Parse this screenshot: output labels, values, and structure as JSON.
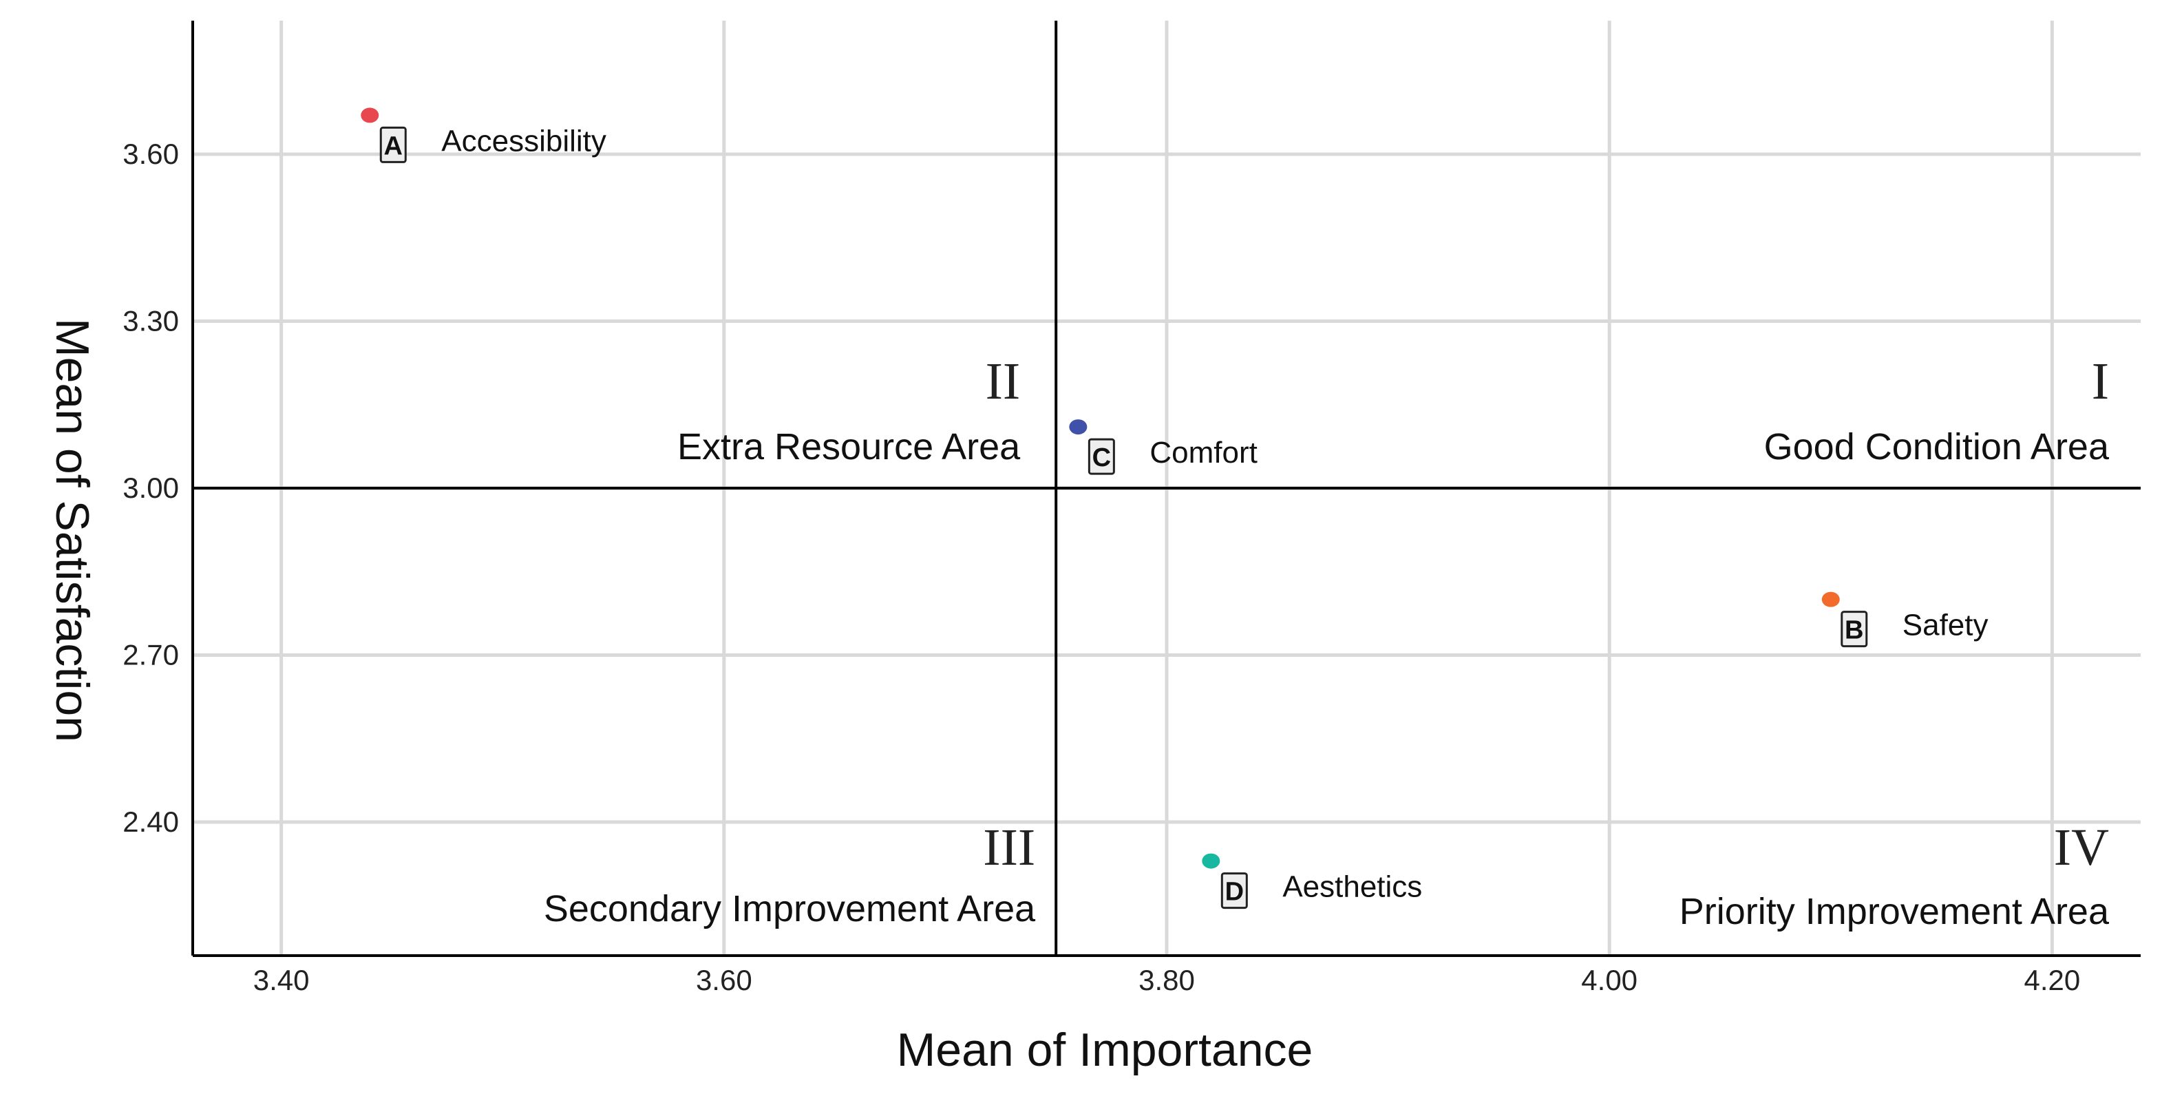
{
  "chart_data": {
    "type": "scatter",
    "title": "",
    "xlabel": "Mean of Importance",
    "ylabel": "Mean of Satisfaction",
    "xlim": [
      3.36,
      4.24
    ],
    "ylim": [
      2.16,
      3.84
    ],
    "x_ticks": [
      3.4,
      3.6,
      3.8,
      4.0,
      4.2
    ],
    "y_ticks": [
      2.4,
      2.7,
      3.0,
      3.3,
      3.6
    ],
    "x_tick_labels": [
      "3.40",
      "3.60",
      "3.80",
      "4.00",
      "4.20"
    ],
    "y_tick_labels": [
      "2.40",
      "2.70",
      "3.00",
      "3.30",
      "3.60"
    ],
    "grid": true,
    "reference_lines": {
      "x": 3.75,
      "y": 3.0
    },
    "points": [
      {
        "letter": "A",
        "name": "Accessibility",
        "x": 3.44,
        "y": 3.67,
        "color": "#e8474f"
      },
      {
        "letter": "B",
        "name": "Safety",
        "x": 4.1,
        "y": 2.8,
        "color": "#f26b2a"
      },
      {
        "letter": "C",
        "name": "Comfort",
        "x": 3.76,
        "y": 3.11,
        "color": "#3f51a8"
      },
      {
        "letter": "D",
        "name": "Aesthetics",
        "x": 3.82,
        "y": 2.33,
        "color": "#18b8a0"
      }
    ],
    "quadrants": [
      {
        "numeral": "I",
        "name": "Good Condition Area",
        "position": "top-right"
      },
      {
        "numeral": "II",
        "name": "Extra Resource Area",
        "position": "top-left"
      },
      {
        "numeral": "III",
        "name": "Secondary Improvement Area",
        "position": "bottom-left"
      },
      {
        "numeral": "IV",
        "name": "Priority Improvement Area",
        "position": "bottom-right"
      }
    ]
  }
}
